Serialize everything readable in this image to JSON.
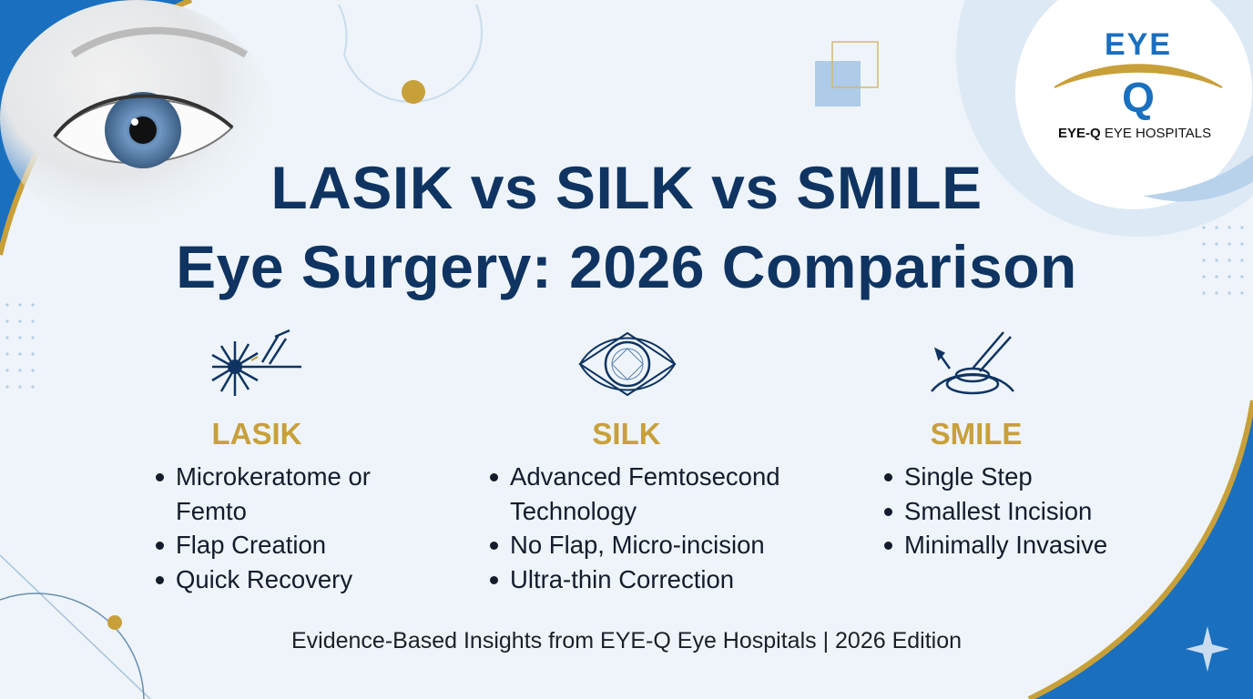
{
  "title": {
    "line1": "LASIK vs SILK vs SMILE",
    "line2": "Eye Surgery: 2026 Comparison"
  },
  "logo": {
    "mark_top": "EYE",
    "mark_bottom": "Q",
    "brand": "EYE-Q",
    "suffix": "EYE HOSPITALS"
  },
  "columns": [
    {
      "icon": "laser-icon",
      "heading": "LASIK",
      "bullets": [
        "Microkeratome or Femto",
        "Flap Creation",
        "Quick Recovery"
      ]
    },
    {
      "icon": "eye-diamond-icon",
      "heading": "SILK",
      "bullets": [
        "Advanced Femtosecond Technology",
        "No Flap, Micro-incision",
        "Ultra-thin Correction"
      ]
    },
    {
      "icon": "lenticule-extraction-icon",
      "heading": "SMILE",
      "bullets": [
        "Single Step",
        "Smallest Incision",
        "Minimally Invasive"
      ]
    }
  ],
  "footer": "Evidence-Based Insights from EYE-Q Eye Hospitals | 2026 Edition",
  "colors": {
    "navy": "#0f3461",
    "gold": "#c8a03a",
    "blue": "#1a6fbf",
    "background": "#eef4f9"
  }
}
